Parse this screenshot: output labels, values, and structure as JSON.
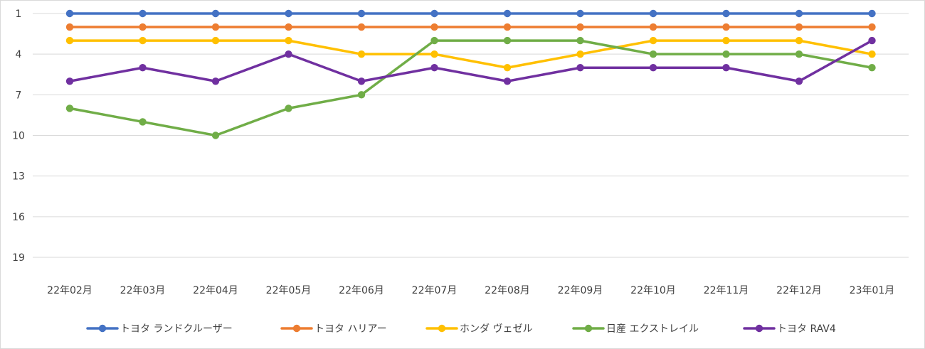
{
  "chart_data": {
    "type": "line",
    "title": "",
    "xlabel": "",
    "ylabel": "",
    "y_inverted": true,
    "ylim": [
      1,
      19
    ],
    "yticks": [
      1,
      4,
      7,
      10,
      13,
      16,
      19
    ],
    "ytick_labels": [
      "1",
      "4",
      "7",
      "10",
      "13",
      "16",
      "19"
    ],
    "gridlines": true,
    "legend_position": "bottom",
    "categories": [
      "22年02月",
      "22年03月",
      "22年04月",
      "22年05月",
      "22年06月",
      "22年07月",
      "22年08月",
      "22年09月",
      "22年10月",
      "22年11月",
      "22年12月",
      "23年01月"
    ],
    "series": [
      {
        "name": "トヨタ ランドクルーザー",
        "color": "#4472c4",
        "values": [
          1,
          1,
          1,
          1,
          1,
          1,
          1,
          1,
          1,
          1,
          1,
          1
        ]
      },
      {
        "name": "トヨタ ハリアー",
        "color": "#ed7d31",
        "values": [
          2,
          2,
          2,
          2,
          2,
          2,
          2,
          2,
          2,
          2,
          2,
          2
        ]
      },
      {
        "name": "ホンダ ヴェゼル",
        "color": "#ffc000",
        "values": [
          3,
          3,
          3,
          3,
          4,
          4,
          5,
          4,
          3,
          3,
          3,
          4
        ]
      },
      {
        "name": "日産 エクストレイル",
        "color": "#70ad47",
        "values": [
          8,
          9,
          10,
          8,
          7,
          3,
          3,
          3,
          4,
          4,
          4,
          5
        ]
      },
      {
        "name": "トヨタ RAV4",
        "color": "#7030a0",
        "values": [
          6,
          5,
          6,
          4,
          6,
          5,
          6,
          5,
          5,
          5,
          6,
          3
        ]
      }
    ]
  },
  "colors": {
    "grid": "#d9d9d9",
    "text": "#404040",
    "border": "#d9d9d9"
  }
}
